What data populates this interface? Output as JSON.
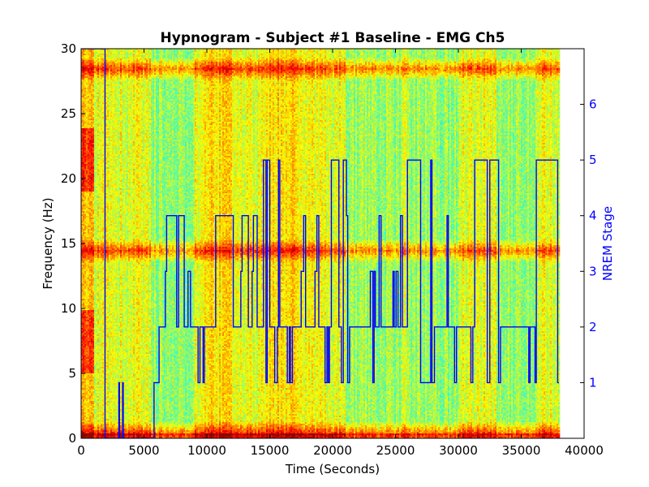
{
  "chart_data": {
    "type": "heatmap",
    "title": "Hypnogram - Subject #1 Baseline - EMG Ch5",
    "xlabel": "Time (Seconds)",
    "ylabel": "Frequency (Hz)",
    "y2label": "NREM Stage",
    "xlim": [
      0,
      40000
    ],
    "ylim": [
      0,
      30
    ],
    "y2lim": [
      0,
      7
    ],
    "x_ticks": [
      0,
      5000,
      10000,
      15000,
      20000,
      25000,
      30000,
      35000,
      40000
    ],
    "y_ticks": [
      0,
      5,
      10,
      15,
      20,
      25,
      30
    ],
    "y2_ticks": [
      1,
      2,
      3,
      4,
      5,
      6
    ],
    "spectrogram": {
      "x_range": [
        0,
        38000
      ],
      "y_range": [
        0,
        30
      ],
      "colormap": "jet",
      "strong_bands_hz": [
        28.5,
        14.5,
        0.5
      ],
      "low_power_regions": [
        [
          5500,
          9000
        ],
        [
          21000,
          25500
        ],
        [
          26000,
          30000
        ],
        [
          33000,
          36000
        ]
      ],
      "high_power_regions": [
        [
          9500,
          12000
        ],
        [
          14500,
          17500
        ]
      ]
    },
    "series": [
      {
        "color": "#0000ff",
        "axis": "right",
        "style": "step",
        "points": [
          [
            0,
            7
          ],
          [
            1900,
            7
          ],
          [
            1900,
            0
          ],
          [
            3000,
            0
          ],
          [
            3000,
            1
          ],
          [
            3050,
            1
          ],
          [
            3050,
            0
          ],
          [
            3300,
            0
          ],
          [
            3300,
            1
          ],
          [
            3350,
            1
          ],
          [
            3350,
            0
          ],
          [
            5800,
            0
          ],
          [
            5800,
            1
          ],
          [
            6200,
            1
          ],
          [
            6200,
            2
          ],
          [
            6700,
            2
          ],
          [
            6700,
            3
          ],
          [
            6800,
            3
          ],
          [
            6800,
            4
          ],
          [
            7600,
            4
          ],
          [
            7600,
            2
          ],
          [
            7750,
            2
          ],
          [
            7750,
            4
          ],
          [
            8200,
            4
          ],
          [
            8200,
            2
          ],
          [
            8500,
            2
          ],
          [
            8500,
            3
          ],
          [
            8700,
            3
          ],
          [
            8700,
            2
          ],
          [
            9300,
            2
          ],
          [
            9300,
            1
          ],
          [
            9450,
            1
          ],
          [
            9450,
            2
          ],
          [
            9700,
            2
          ],
          [
            9700,
            1
          ],
          [
            9800,
            1
          ],
          [
            9800,
            2
          ],
          [
            10700,
            2
          ],
          [
            10700,
            4
          ],
          [
            12100,
            4
          ],
          [
            12100,
            2
          ],
          [
            12700,
            2
          ],
          [
            12700,
            3
          ],
          [
            12800,
            3
          ],
          [
            12800,
            4
          ],
          [
            13300,
            4
          ],
          [
            13300,
            2
          ],
          [
            13600,
            2
          ],
          [
            13600,
            3
          ],
          [
            13700,
            3
          ],
          [
            13700,
            4
          ],
          [
            14000,
            4
          ],
          [
            14000,
            2
          ],
          [
            14500,
            2
          ],
          [
            14500,
            5
          ],
          [
            14700,
            5
          ],
          [
            14700,
            1
          ],
          [
            14800,
            1
          ],
          [
            14800,
            5
          ],
          [
            15000,
            5
          ],
          [
            15000,
            2
          ],
          [
            15400,
            2
          ],
          [
            15400,
            1
          ],
          [
            15600,
            1
          ],
          [
            15600,
            2
          ],
          [
            15700,
            2
          ],
          [
            15700,
            5
          ],
          [
            15800,
            5
          ],
          [
            15800,
            2
          ],
          [
            16400,
            2
          ],
          [
            16400,
            1
          ],
          [
            16550,
            1
          ],
          [
            16550,
            2
          ],
          [
            16650,
            2
          ],
          [
            16650,
            1
          ],
          [
            16800,
            1
          ],
          [
            16800,
            2
          ],
          [
            17500,
            2
          ],
          [
            17500,
            3
          ],
          [
            17700,
            3
          ],
          [
            17700,
            4
          ],
          [
            17850,
            4
          ],
          [
            17850,
            2
          ],
          [
            18600,
            2
          ],
          [
            18600,
            3
          ],
          [
            18750,
            3
          ],
          [
            18750,
            4
          ],
          [
            18900,
            4
          ],
          [
            18900,
            2
          ],
          [
            19400,
            2
          ],
          [
            19400,
            1
          ],
          [
            19550,
            1
          ],
          [
            19550,
            2
          ],
          [
            19650,
            2
          ],
          [
            19650,
            1
          ],
          [
            19750,
            1
          ],
          [
            19750,
            2
          ],
          [
            19900,
            2
          ],
          [
            19900,
            5
          ],
          [
            20500,
            5
          ],
          [
            20500,
            2
          ],
          [
            20700,
            2
          ],
          [
            20700,
            1
          ],
          [
            20850,
            1
          ],
          [
            20850,
            5
          ],
          [
            21100,
            5
          ],
          [
            21100,
            4
          ],
          [
            21200,
            4
          ],
          [
            21200,
            1
          ],
          [
            21350,
            1
          ],
          [
            21350,
            2
          ],
          [
            23000,
            2
          ],
          [
            23000,
            3
          ],
          [
            23200,
            3
          ],
          [
            23200,
            1
          ],
          [
            23300,
            1
          ],
          [
            23300,
            3
          ],
          [
            23400,
            3
          ],
          [
            23400,
            2
          ],
          [
            23700,
            2
          ],
          [
            23700,
            4
          ],
          [
            23850,
            4
          ],
          [
            23850,
            2
          ],
          [
            24800,
            2
          ],
          [
            24800,
            3
          ],
          [
            24900,
            3
          ],
          [
            24900,
            2
          ],
          [
            25050,
            2
          ],
          [
            25050,
            3
          ],
          [
            25200,
            3
          ],
          [
            25200,
            2
          ],
          [
            25400,
            2
          ],
          [
            25400,
            4
          ],
          [
            25550,
            4
          ],
          [
            25550,
            2
          ],
          [
            25950,
            2
          ],
          [
            25950,
            5
          ],
          [
            27000,
            5
          ],
          [
            27000,
            1
          ],
          [
            27800,
            1
          ],
          [
            27800,
            5
          ],
          [
            27900,
            5
          ],
          [
            27900,
            1
          ],
          [
            28100,
            1
          ],
          [
            28100,
            2
          ],
          [
            29100,
            2
          ],
          [
            29100,
            4
          ],
          [
            29200,
            4
          ],
          [
            29200,
            2
          ],
          [
            29700,
            2
          ],
          [
            29700,
            1
          ],
          [
            29850,
            1
          ],
          [
            29850,
            2
          ],
          [
            31000,
            2
          ],
          [
            31000,
            1
          ],
          [
            31150,
            1
          ],
          [
            31150,
            2
          ],
          [
            31300,
            2
          ],
          [
            31300,
            5
          ],
          [
            32300,
            5
          ],
          [
            32300,
            1
          ],
          [
            32500,
            1
          ],
          [
            32500,
            5
          ],
          [
            33200,
            5
          ],
          [
            33200,
            1
          ],
          [
            33350,
            1
          ],
          [
            33350,
            2
          ],
          [
            35600,
            2
          ],
          [
            35600,
            1
          ],
          [
            35700,
            1
          ],
          [
            35700,
            2
          ],
          [
            36100,
            2
          ],
          [
            36100,
            1
          ],
          [
            36200,
            1
          ],
          [
            36200,
            5
          ],
          [
            37900,
            5
          ],
          [
            37900,
            1
          ],
          [
            38000,
            1
          ]
        ]
      }
    ]
  }
}
